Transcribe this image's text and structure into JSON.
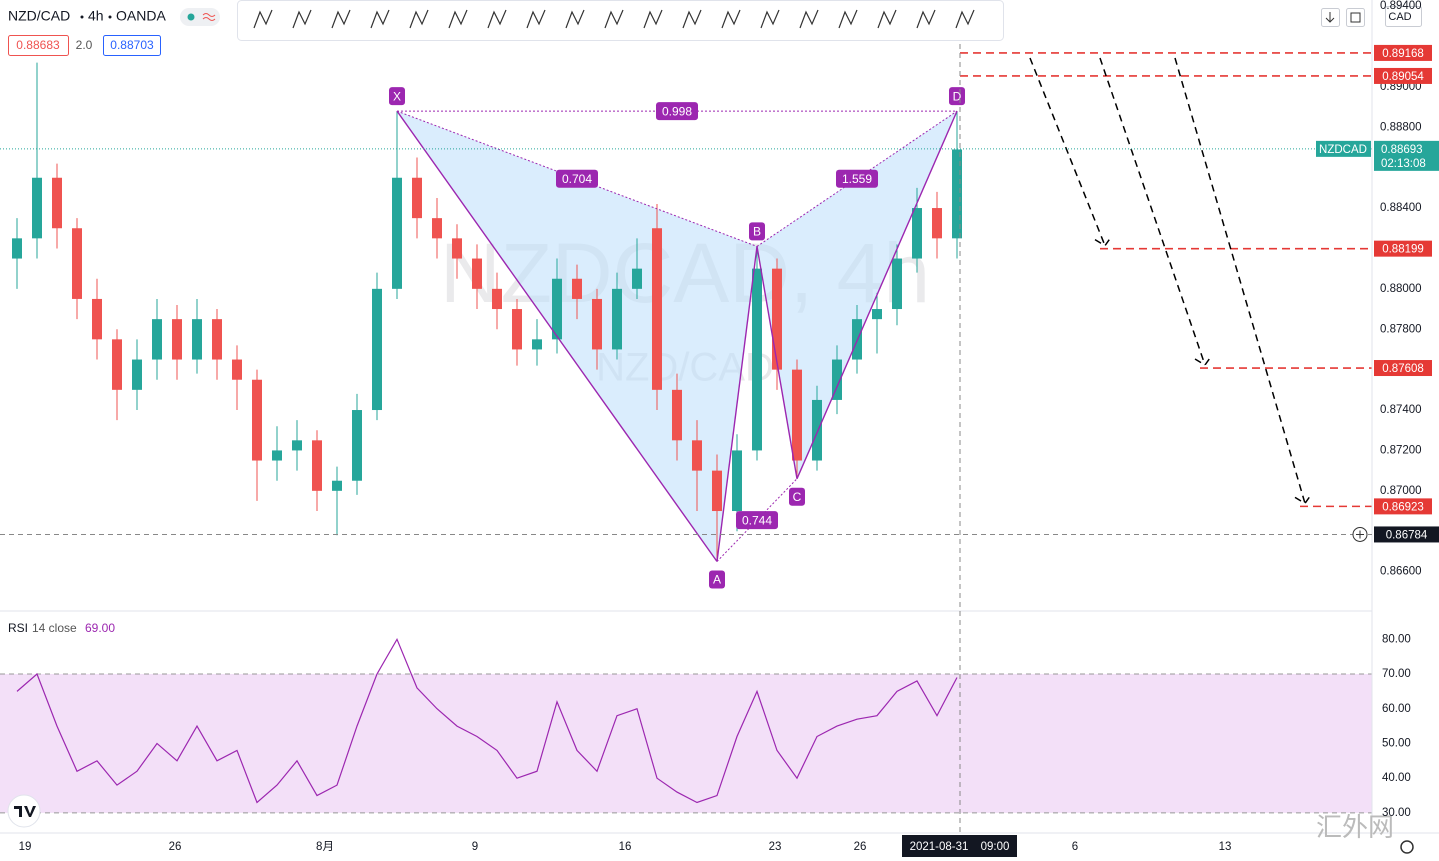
{
  "header": {
    "symbol": "NZD/CAD",
    "interval": "4h",
    "broker": "OANDA",
    "bid": "0.88683",
    "spread": "2.0",
    "ask": "0.88703",
    "currency": "CAD"
  },
  "time_axis": [
    "19",
    "26",
    "8月",
    "9",
    "16",
    "23",
    "26",
    "6",
    "13"
  ],
  "crosshair": {
    "date": "2021-08-31",
    "time": "09:00",
    "price": 0.86784
  },
  "watermark": {
    "main": "NZDCAD, 4h",
    "sub": "NZD/CAD",
    "site": "汇外网"
  },
  "chart_data": [
    {
      "type": "candlestick",
      "up_color": "#26a69a",
      "down_color": "#ef5350",
      "candles": [
        [
          0.8815,
          0.8835,
          0.88,
          0.8825
        ],
        [
          0.8825,
          0.8912,
          0.8815,
          0.8855
        ],
        [
          0.8855,
          0.8862,
          0.882,
          0.883
        ],
        [
          0.883,
          0.8835,
          0.8785,
          0.8795
        ],
        [
          0.8795,
          0.8805,
          0.8765,
          0.8775
        ],
        [
          0.8775,
          0.878,
          0.8735,
          0.875
        ],
        [
          0.875,
          0.8775,
          0.874,
          0.8765
        ],
        [
          0.8765,
          0.8795,
          0.8755,
          0.8785
        ],
        [
          0.8785,
          0.8792,
          0.8755,
          0.8765
        ],
        [
          0.8765,
          0.8795,
          0.8758,
          0.8785
        ],
        [
          0.8785,
          0.879,
          0.8755,
          0.8765
        ],
        [
          0.8765,
          0.8772,
          0.874,
          0.8755
        ],
        [
          0.8755,
          0.876,
          0.8695,
          0.8715
        ],
        [
          0.8715,
          0.8732,
          0.8705,
          0.872
        ],
        [
          0.872,
          0.8735,
          0.871,
          0.8725
        ],
        [
          0.8725,
          0.873,
          0.869,
          0.87
        ],
        [
          0.87,
          0.8712,
          0.8678,
          0.8705
        ],
        [
          0.8705,
          0.8748,
          0.8698,
          0.874
        ],
        [
          0.874,
          0.8808,
          0.8735,
          0.88
        ],
        [
          0.88,
          0.8888,
          0.8795,
          0.8855
        ],
        [
          0.8855,
          0.8865,
          0.8825,
          0.8835
        ],
        [
          0.8835,
          0.8845,
          0.8815,
          0.8825
        ],
        [
          0.8825,
          0.8832,
          0.8805,
          0.8815
        ],
        [
          0.8815,
          0.8822,
          0.879,
          0.88
        ],
        [
          0.88,
          0.8808,
          0.878,
          0.879
        ],
        [
          0.879,
          0.8795,
          0.8762,
          0.877
        ],
        [
          0.877,
          0.8785,
          0.8762,
          0.8775
        ],
        [
          0.8775,
          0.8815,
          0.8768,
          0.8805
        ],
        [
          0.8805,
          0.8812,
          0.8785,
          0.8795
        ],
        [
          0.8795,
          0.88,
          0.876,
          0.877
        ],
        [
          0.877,
          0.8808,
          0.8765,
          0.88
        ],
        [
          0.88,
          0.8825,
          0.8795,
          0.881
        ],
        [
          0.883,
          0.8842,
          0.874,
          0.875
        ],
        [
          0.875,
          0.8758,
          0.8715,
          0.8725
        ],
        [
          0.8725,
          0.8735,
          0.869,
          0.871
        ],
        [
          0.871,
          0.8718,
          0.8665,
          0.869
        ],
        [
          0.869,
          0.8728,
          0.868,
          0.872
        ],
        [
          0.872,
          0.8821,
          0.8715,
          0.881
        ],
        [
          0.881,
          0.8815,
          0.875,
          0.876
        ],
        [
          0.876,
          0.8765,
          0.8706,
          0.8715
        ],
        [
          0.8715,
          0.8752,
          0.871,
          0.8745
        ],
        [
          0.8745,
          0.8772,
          0.8738,
          0.8765
        ],
        [
          0.8765,
          0.8792,
          0.8758,
          0.8785
        ],
        [
          0.8785,
          0.8798,
          0.8768,
          0.879
        ],
        [
          0.879,
          0.8822,
          0.8782,
          0.8815
        ],
        [
          0.8815,
          0.885,
          0.8808,
          0.884
        ],
        [
          0.884,
          0.8848,
          0.8815,
          0.8825
        ],
        [
          0.8825,
          0.8888,
          0.8815,
          0.8869
        ]
      ],
      "ylim": [
        0.8641,
        0.8943
      ],
      "yticks": [
        {
          "value": 0.866,
          "label": "0.86600"
        },
        {
          "value": 0.87,
          "label": "0.87000"
        },
        {
          "value": 0.872,
          "label": "0.87200"
        },
        {
          "value": 0.874,
          "label": "0.87400"
        },
        {
          "value": 0.878,
          "label": "0.87800"
        },
        {
          "value": 0.88,
          "label": "0.88000"
        },
        {
          "value": 0.884,
          "label": "0.88400"
        },
        {
          "value": 0.888,
          "label": "0.88800"
        },
        {
          "value": 0.89,
          "label": "0.89000"
        },
        {
          "value": 0.894,
          "label": "0.89400"
        }
      ],
      "grid": false,
      "last_price": {
        "symbol": "NZDCAD",
        "value": 0.88693,
        "countdown": "02:13:08"
      },
      "levels": [
        0.89168,
        0.89054,
        0.88199,
        0.87608,
        0.86923
      ],
      "level_color": "#e53935",
      "pattern": {
        "color": "#9c27b0",
        "fill": "#bbdefb",
        "points": [
          {
            "label": "X",
            "value": 0.8888
          },
          {
            "label": "A",
            "value": 0.8665
          },
          {
            "label": "B",
            "value": 0.8821
          },
          {
            "label": "C",
            "value": 0.8706
          },
          {
            "label": "D",
            "value": 0.8888
          }
        ],
        "ratios": {
          "XB": "0.704",
          "AC": "0.744",
          "BD": "1.559",
          "XD": "0.998"
        }
      }
    },
    {
      "type": "line",
      "title": "RSI",
      "params": "14 close",
      "legend_value": {
        "value": 69,
        "label": "69.00"
      },
      "color": "#9c27b0",
      "band": [
        30,
        70
      ],
      "band_color": "#f3e0f8",
      "values": [
        65,
        70,
        55,
        42,
        45,
        38,
        42,
        50,
        45,
        55,
        45,
        48,
        33,
        38,
        45,
        35,
        38,
        55,
        70,
        80,
        66,
        60,
        55,
        52,
        48,
        40,
        42,
        62,
        48,
        42,
        58,
        60,
        40,
        36,
        33,
        35,
        52,
        65,
        48,
        40,
        52,
        55,
        57,
        58,
        65,
        68,
        58,
        69
      ],
      "ylim": [
        24.5,
        87
      ],
      "yticks": [
        {
          "value": 30,
          "label": "30.00"
        },
        {
          "value": 40,
          "label": "40.00"
        },
        {
          "value": 50,
          "label": "50.00"
        },
        {
          "value": 60,
          "label": "60.00"
        },
        {
          "value": 70,
          "label": "70.00"
        },
        {
          "value": 80,
          "label": "80.00"
        }
      ]
    }
  ]
}
